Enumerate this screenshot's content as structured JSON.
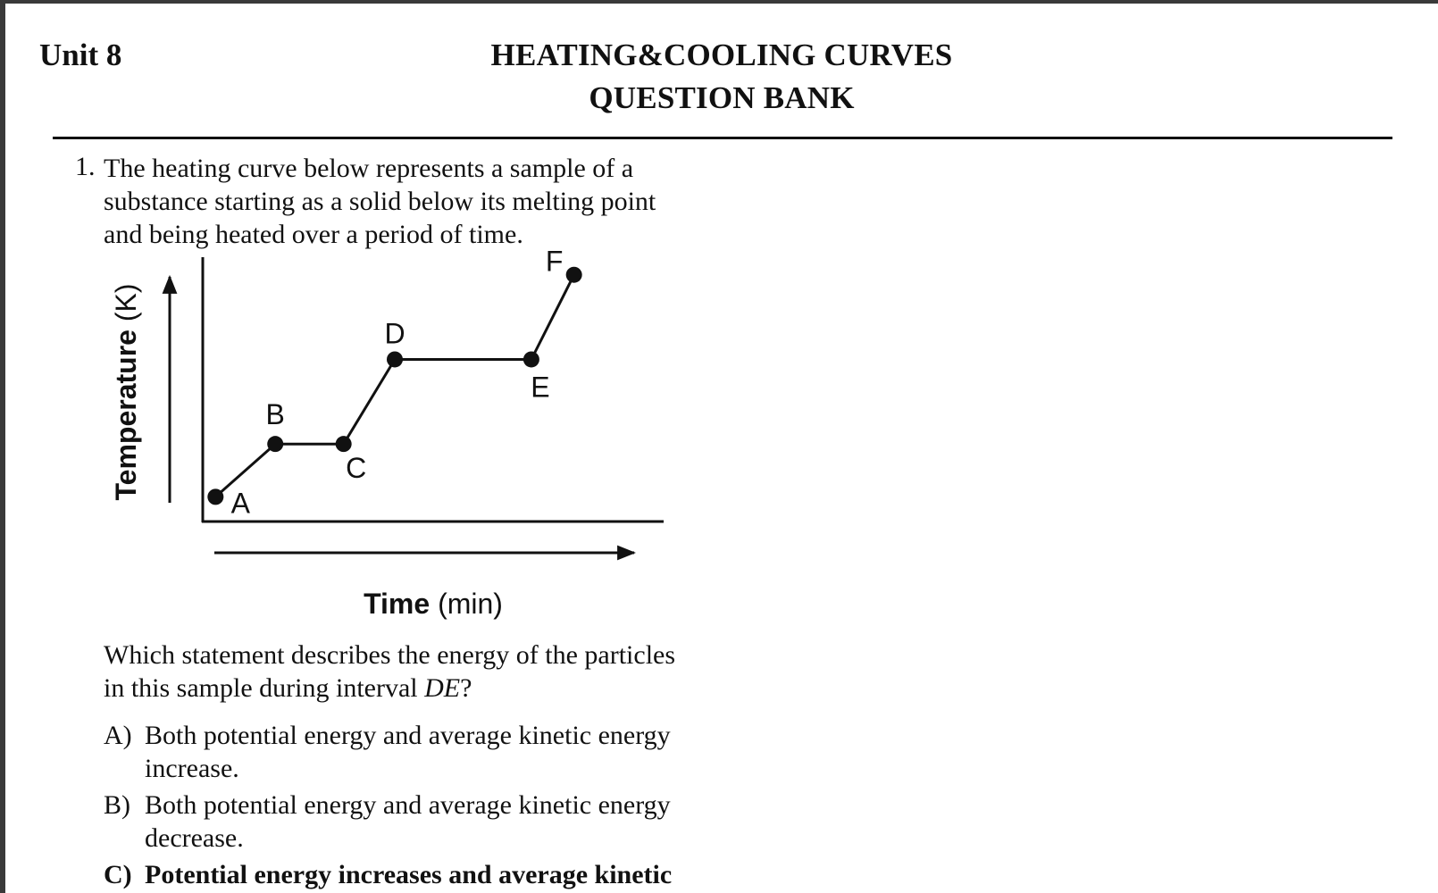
{
  "header": {
    "unit": "Unit 8",
    "title_line1": "HEATING&COOLING CURVES",
    "title_line2": "QUESTION BANK"
  },
  "question1": {
    "number": "1.",
    "stem_lines": [
      "The heating curve below represents a sample of a",
      "substance starting as a solid below its melting point",
      "and being heated over a period of time."
    ],
    "prompt_line1": "Which statement describes the energy of the particles",
    "prompt_line2_pre": "in this sample during interval ",
    "prompt_line2_italic": "DE",
    "prompt_line2_post": "?",
    "choices": [
      {
        "letter": "A)",
        "lines": [
          "Both potential energy and average kinetic energy",
          "increase."
        ]
      },
      {
        "letter": "B)",
        "lines": [
          "Both potential energy and average kinetic energy",
          "decrease."
        ]
      },
      {
        "letter": "C)",
        "lines": [
          "Potential energy increases and average kinetic"
        ]
      }
    ]
  },
  "chart_data": {
    "type": "line",
    "ylabel_bold": "Temperature",
    "ylabel_unit": " (K)",
    "xlabel_bold": "Time",
    "xlabel_unit": " (min)",
    "points": [
      {
        "label": "A",
        "x": 0.3,
        "y": 0.7
      },
      {
        "label": "B",
        "x": 1.7,
        "y": 2.2
      },
      {
        "label": "C",
        "x": 3.3,
        "y": 2.2
      },
      {
        "label": "D",
        "x": 4.5,
        "y": 4.6
      },
      {
        "label": "E",
        "x": 7.7,
        "y": 4.6
      },
      {
        "label": "F",
        "x": 8.7,
        "y": 7.0
      }
    ],
    "xlim": [
      0,
      10.8
    ],
    "ylim": [
      0,
      7.5
    ]
  }
}
